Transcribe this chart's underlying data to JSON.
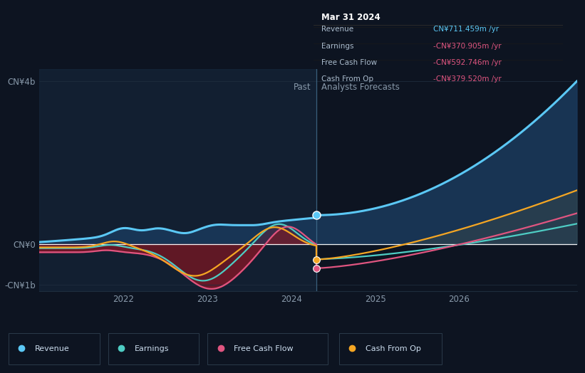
{
  "bg_color": "#0d1421",
  "plot_bg_color": "#0d1421",
  "divider_x": 2024.3,
  "ylim_data": [
    -1150000000.0,
    4300000000.0
  ],
  "xlim": [
    2021.0,
    2027.4
  ],
  "revenue_color": "#5bc8f5",
  "earnings_color": "#4ecdc4",
  "fcf_color": "#e05580",
  "cashop_color": "#f5a623",
  "neg_fill_color": "#8b1a1a",
  "pos_fill_color": "#1a3050",
  "forecast_fill_color": "#2a3540",
  "legend_entries": [
    "Revenue",
    "Earnings",
    "Free Cash Flow",
    "Cash From Op"
  ],
  "tooltip_title": "Mar 31 2024",
  "tooltip_rows": [
    {
      "label": "Revenue",
      "value": "CN¥711.459m /yr",
      "value_color": "#5bc8f5"
    },
    {
      "label": "Earnings",
      "value": "-CN¥370.905m /yr",
      "value_color": "#e05580"
    },
    {
      "label": "Free Cash Flow",
      "value": "-CN¥592.746m /yr",
      "value_color": "#e05580"
    },
    {
      "label": "Cash From Op",
      "value": "-CN¥379.520m /yr",
      "value_color": "#e05580"
    }
  ],
  "past_label": "Past",
  "forecast_label": "Analysts Forecasts",
  "ytick_labels": [
    "-CN¥1b",
    "CN¥0",
    "CN¥4b"
  ],
  "ytick_values": [
    -1000000000.0,
    0,
    4000000000.0
  ],
  "xtick_values": [
    2022,
    2023,
    2024,
    2025,
    2026
  ],
  "xtick_labels": [
    "2022",
    "2023",
    "2024",
    "2025",
    "2026"
  ]
}
